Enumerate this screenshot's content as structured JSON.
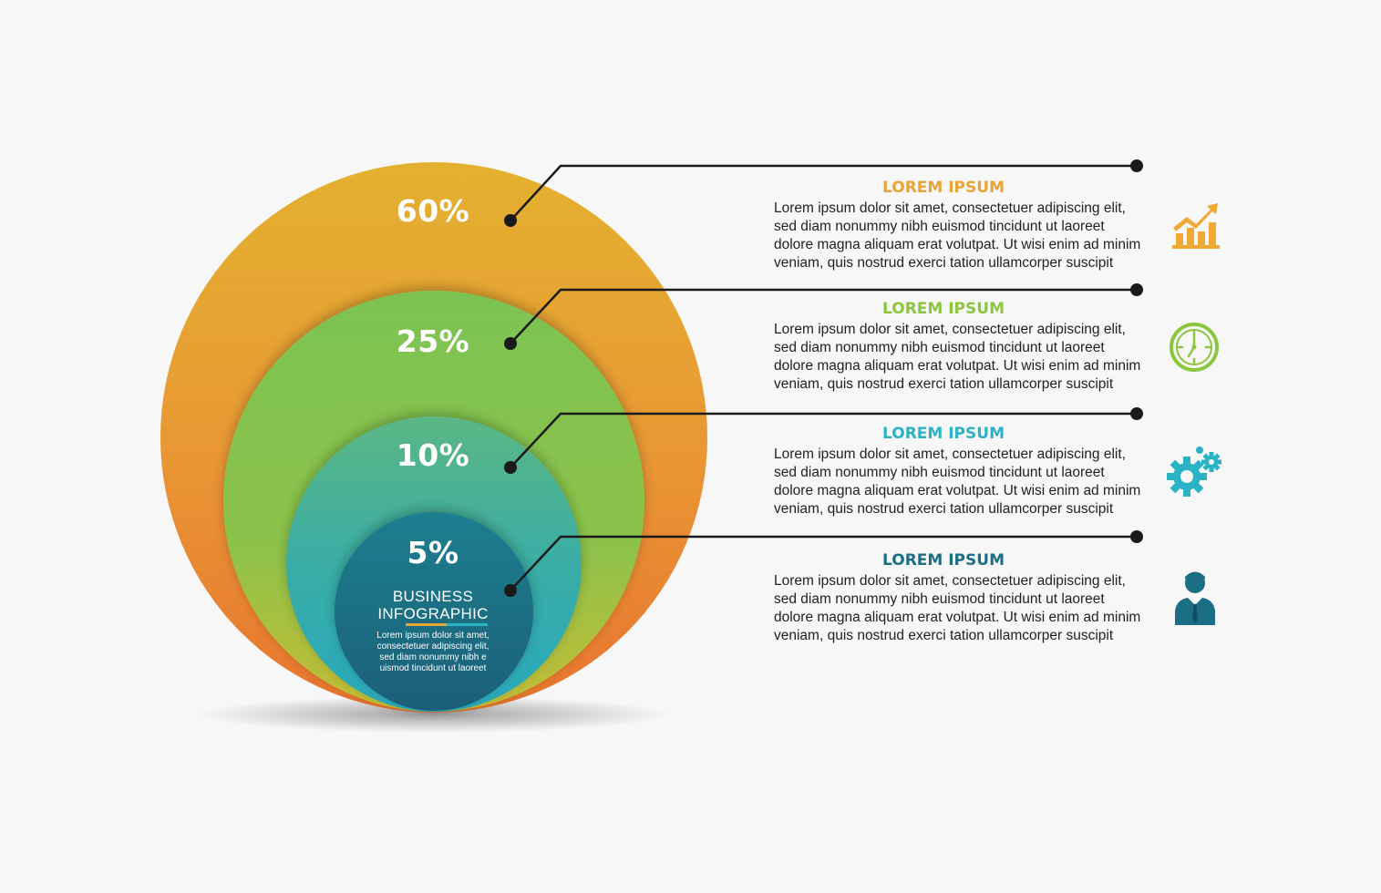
{
  "colors": {
    "background": "#f7f7f7",
    "orange": "#e8a434",
    "green": "#8cc63f",
    "teal": "#2ab3c4",
    "dark_teal": "#1b6f85",
    "connector": "#1a1a1a"
  },
  "rings": [
    {
      "value": "60%",
      "color_name": "orange"
    },
    {
      "value": "25%",
      "color_name": "green"
    },
    {
      "value": "10%",
      "color_name": "teal"
    },
    {
      "value": "5%",
      "color_name": "dark-teal"
    }
  ],
  "center": {
    "title_line1": "BUSINESS",
    "title_line2": "INFOGRAPHIC",
    "body": [
      "Lorem ipsum dolor sit amet,",
      "consectetuer adipiscing elit,",
      "sed diam nonummy nibh e",
      "uismod tincidunt ut laoreet"
    ]
  },
  "items": [
    {
      "title": "LOREM IPSUM",
      "icon": "growth-chart-icon",
      "lines": [
        "Lorem ipsum dolor sit amet, consectetuer adipiscing elit,",
        "sed diam nonummy nibh euismod tincidunt ut laoreet",
        "dolore magna aliquam erat volutpat. Ut wisi enim ad minim",
        "veniam, quis nostrud exerci tation ullamcorper suscipit"
      ]
    },
    {
      "title": "LOREM IPSUM",
      "icon": "clock-icon",
      "lines": [
        "Lorem ipsum dolor sit amet, consectetuer adipiscing elit,",
        "sed diam nonummy nibh euismod tincidunt ut laoreet",
        "dolore magna aliquam erat volutpat. Ut wisi enim ad minim",
        "veniam, quis nostrud exerci tation ullamcorper suscipit"
      ]
    },
    {
      "title": "LOREM IPSUM",
      "icon": "gears-icon",
      "lines": [
        "Lorem ipsum dolor sit amet, consectetuer adipiscing elit,",
        "sed diam nonummy nibh euismod tincidunt ut laoreet",
        "dolore magna aliquam erat volutpat. Ut wisi enim ad minim",
        "veniam, quis nostrud exerci tation ullamcorper suscipit"
      ]
    },
    {
      "title": "LOREM IPSUM",
      "icon": "businessman-icon",
      "lines": [
        "Lorem ipsum dolor sit amet, consectetuer adipiscing elit,",
        "sed diam nonummy nibh euismod tincidunt ut laoreet",
        "dolore magna aliquam erat volutpat. Ut wisi enim ad minim",
        "veniam, quis nostrud exerci tation ullamcorper suscipit"
      ]
    }
  ]
}
